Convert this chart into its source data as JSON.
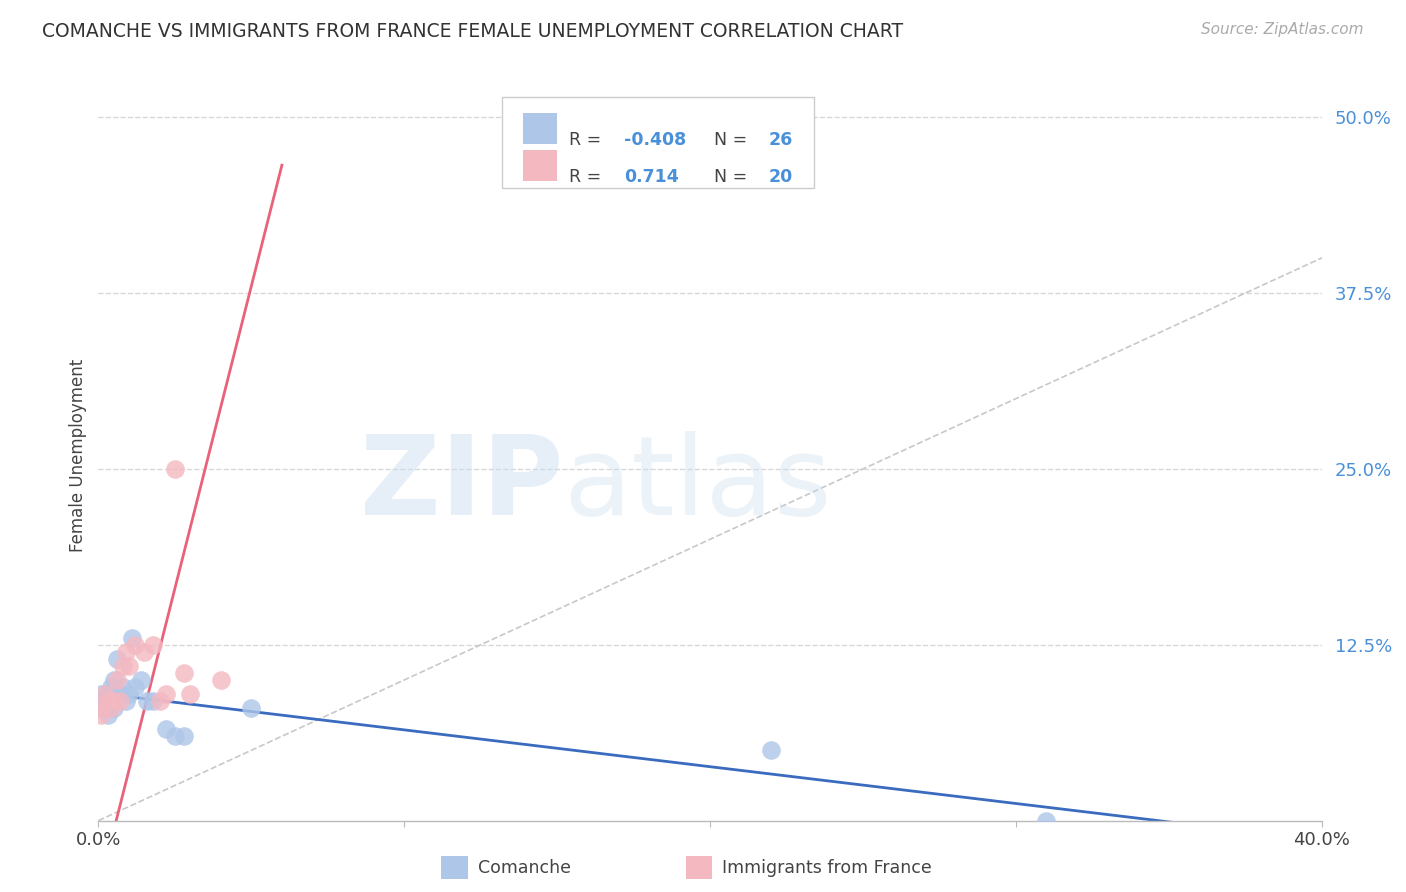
{
  "title": "COMANCHE VS IMMIGRANTS FROM FRANCE FEMALE UNEMPLOYMENT CORRELATION CHART",
  "source": "Source: ZipAtlas.com",
  "ylabel": "Female Unemployment",
  "watermark_zip": "ZIP",
  "watermark_atlas": "atlas",
  "comanche_color": "#aec6e8",
  "france_color": "#f4b8c1",
  "comanche_line_color": "#3a6bbf",
  "france_line_color": "#e8637a",
  "diagonal_color": "#c8c8c8",
  "R_comanche": "-0.408",
  "N_comanche": "26",
  "R_france": "0.714",
  "N_france": "20",
  "blue_text_color": "#4a90d9",
  "comanche_x": [
    0.0,
    0.001,
    0.002,
    0.002,
    0.003,
    0.003,
    0.004,
    0.004,
    0.005,
    0.005,
    0.006,
    0.007,
    0.008,
    0.009,
    0.01,
    0.011,
    0.012,
    0.014,
    0.016,
    0.018,
    0.022,
    0.025,
    0.028,
    0.05,
    0.22,
    0.31
  ],
  "comanche_y": [
    0.085,
    0.09,
    0.08,
    0.085,
    0.075,
    0.09,
    0.095,
    0.085,
    0.08,
    0.1,
    0.115,
    0.09,
    0.095,
    0.085,
    0.09,
    0.13,
    0.095,
    0.1,
    0.085,
    0.085,
    0.065,
    0.06,
    0.06,
    0.08,
    0.05,
    0.0
  ],
  "france_x": [
    0.0,
    0.001,
    0.002,
    0.003,
    0.004,
    0.005,
    0.006,
    0.007,
    0.008,
    0.009,
    0.01,
    0.012,
    0.015,
    0.018,
    0.02,
    0.022,
    0.025,
    0.028,
    0.03,
    0.04
  ],
  "france_y": [
    0.08,
    0.075,
    0.09,
    0.085,
    0.08,
    0.085,
    0.1,
    0.085,
    0.11,
    0.12,
    0.11,
    0.125,
    0.12,
    0.125,
    0.085,
    0.09,
    0.25,
    0.105,
    0.09,
    0.1
  ],
  "xlim": [
    0.0,
    0.4
  ],
  "ylim": [
    0.0,
    0.52
  ],
  "ytick_vals": [
    0.125,
    0.25,
    0.375,
    0.5
  ],
  "ytick_labels": [
    "12.5%",
    "25.0%",
    "37.5%",
    "50.0%"
  ],
  "xtick_labels_left": "0.0%",
  "xtick_labels_right": "40.0%",
  "background_color": "#ffffff",
  "grid_color": "#d8d8d8"
}
